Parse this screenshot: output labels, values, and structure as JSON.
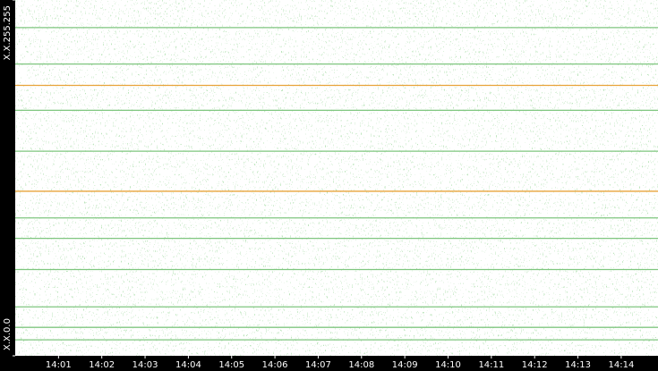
{
  "chart_data": {
    "type": "raster",
    "xlim": [
      0,
      14.85
    ],
    "xticks": [
      {
        "value": 1,
        "label": "14:01"
      },
      {
        "value": 2,
        "label": "14:02"
      },
      {
        "value": 3,
        "label": "14:03"
      },
      {
        "value": 4,
        "label": "14:04"
      },
      {
        "value": 5,
        "label": "14:05"
      },
      {
        "value": 6,
        "label": "14:06"
      },
      {
        "value": 7,
        "label": "14:07"
      },
      {
        "value": 8,
        "label": "14:08"
      },
      {
        "value": 9,
        "label": "14:09"
      },
      {
        "value": 10,
        "label": "14:10"
      },
      {
        "value": 11,
        "label": "14:11"
      },
      {
        "value": 12,
        "label": "14:12"
      },
      {
        "value": 13,
        "label": "14:13"
      },
      {
        "value": 14,
        "label": "14:14"
      }
    ],
    "ylim": [
      0,
      65535
    ],
    "yticks": [
      {
        "value": 0,
        "label": "X.X.0.0"
      },
      {
        "value": 65535,
        "label": "X.X.255.255"
      }
    ],
    "series": [
      {
        "color": "#e8a33a",
        "values": [
          49807,
          30310
        ]
      },
      {
        "color": "#7fc67f",
        "values": [
          60456,
          53739,
          45220,
          37684,
          25397,
          21628,
          15895,
          9010,
          5242,
          2949
        ]
      }
    ]
  }
}
